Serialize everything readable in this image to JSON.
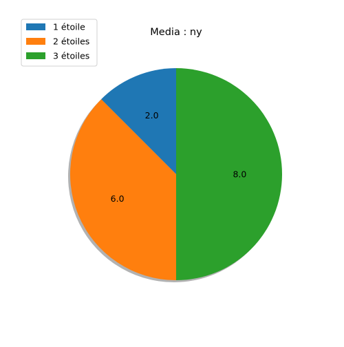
{
  "chart_data": {
    "type": "pie",
    "title": "Media : ny",
    "categories": [
      "1 étoile",
      "2 étoiles",
      "3 étoiles"
    ],
    "values": [
      2.0,
      6.0,
      8.0
    ],
    "value_labels": [
      "2.0",
      "6.0",
      "8.0"
    ],
    "colors": [
      "#1f77b4",
      "#ff7f0e",
      "#2ca02c"
    ],
    "start_angle_deg": 90,
    "direction": "counterclockwise",
    "shadow": true,
    "legend_position": "top-left"
  }
}
